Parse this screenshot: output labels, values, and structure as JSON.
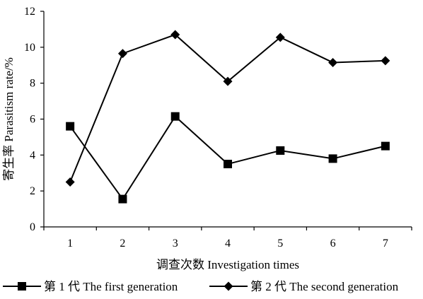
{
  "chart_data": {
    "type": "line",
    "xlabel": "调查次数 Investigation times",
    "ylabel": "寄生率 Parasitism rate/%",
    "x": [
      "1",
      "2",
      "3",
      "4",
      "5",
      "6",
      "7"
    ],
    "xlim": [
      0.5,
      7.5
    ],
    "ylim": [
      0,
      12
    ],
    "yticks": [
      "0",
      "2",
      "4",
      "6",
      "8",
      "10",
      "12"
    ],
    "grid": false,
    "legend_position": "bottom",
    "series": [
      {
        "name": "第 1 代 The first generation",
        "marker": "square",
        "color": "#000000",
        "values": [
          5.6,
          1.55,
          6.15,
          3.5,
          4.25,
          3.8,
          4.5
        ]
      },
      {
        "name": "第 2 代 The second generation",
        "marker": "diamond",
        "color": "#000000",
        "values": [
          2.5,
          9.65,
          10.7,
          8.1,
          10.55,
          9.15,
          9.25
        ]
      }
    ]
  }
}
